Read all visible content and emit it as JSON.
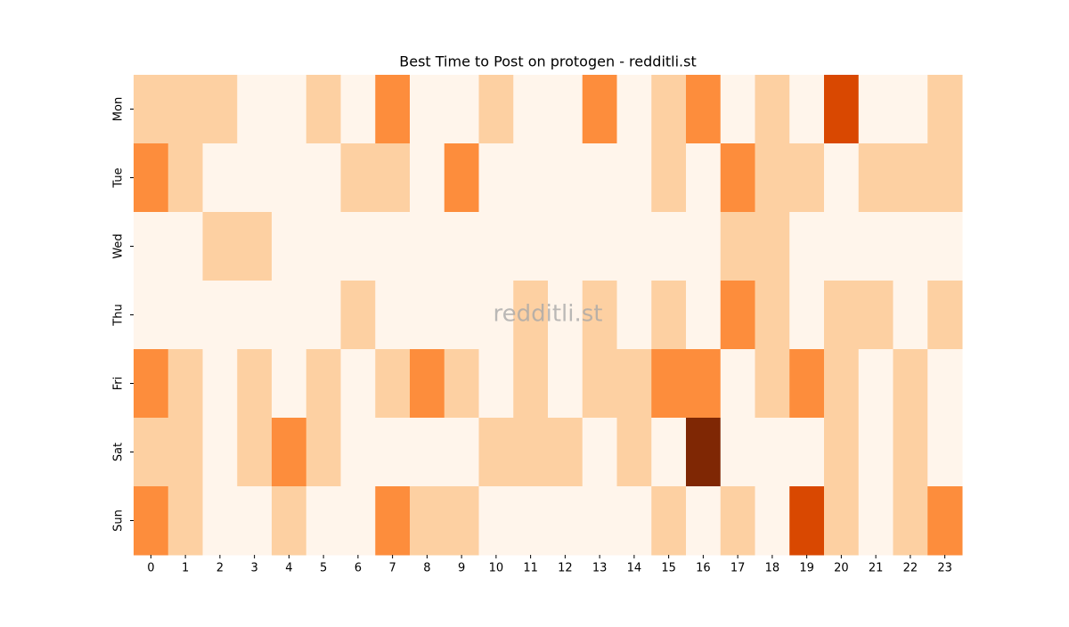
{
  "chart_data": {
    "type": "heatmap",
    "title": "Best Time to Post on protogen - redditli.st",
    "watermark": "redditli.st",
    "x_categories": [
      "0",
      "1",
      "2",
      "3",
      "4",
      "5",
      "6",
      "7",
      "8",
      "9",
      "10",
      "11",
      "12",
      "13",
      "14",
      "15",
      "16",
      "17",
      "18",
      "19",
      "20",
      "21",
      "22",
      "23"
    ],
    "y_categories": [
      "Mon",
      "Tue",
      "Wed",
      "Thu",
      "Fri",
      "Sat",
      "Sun"
    ],
    "values": [
      [
        1,
        1,
        1,
        0,
        0,
        1,
        0,
        2,
        0,
        0,
        1,
        0,
        0,
        2,
        0,
        1,
        2,
        0,
        1,
        0,
        3,
        0,
        0,
        1
      ],
      [
        2,
        1,
        0,
        0,
        0,
        0,
        1,
        1,
        0,
        2,
        0,
        0,
        0,
        0,
        0,
        1,
        0,
        2,
        1,
        1,
        0,
        1,
        1,
        1
      ],
      [
        0,
        0,
        1,
        1,
        0,
        0,
        0,
        0,
        0,
        0,
        0,
        0,
        0,
        0,
        0,
        0,
        0,
        1,
        1,
        0,
        0,
        0,
        0,
        0
      ],
      [
        0,
        0,
        0,
        0,
        0,
        0,
        1,
        0,
        0,
        0,
        0,
        1,
        0,
        1,
        0,
        1,
        0,
        2,
        1,
        0,
        1,
        1,
        0,
        1
      ],
      [
        2,
        1,
        0,
        1,
        0,
        1,
        0,
        1,
        2,
        1,
        0,
        1,
        0,
        1,
        1,
        2,
        2,
        0,
        1,
        2,
        1,
        0,
        1,
        0
      ],
      [
        1,
        1,
        0,
        1,
        2,
        1,
        0,
        0,
        0,
        0,
        1,
        1,
        1,
        0,
        1,
        0,
        4,
        0,
        0,
        0,
        1,
        0,
        1,
        0
      ],
      [
        2,
        1,
        0,
        0,
        1,
        0,
        0,
        2,
        1,
        1,
        0,
        0,
        0,
        0,
        0,
        1,
        0,
        1,
        0,
        3,
        1,
        0,
        1,
        2
      ]
    ],
    "zlim": [
      0,
      4
    ],
    "colormap": [
      "#fff5eb",
      "#fdd0a2",
      "#fd8d3c",
      "#d94801",
      "#7f2704"
    ]
  }
}
